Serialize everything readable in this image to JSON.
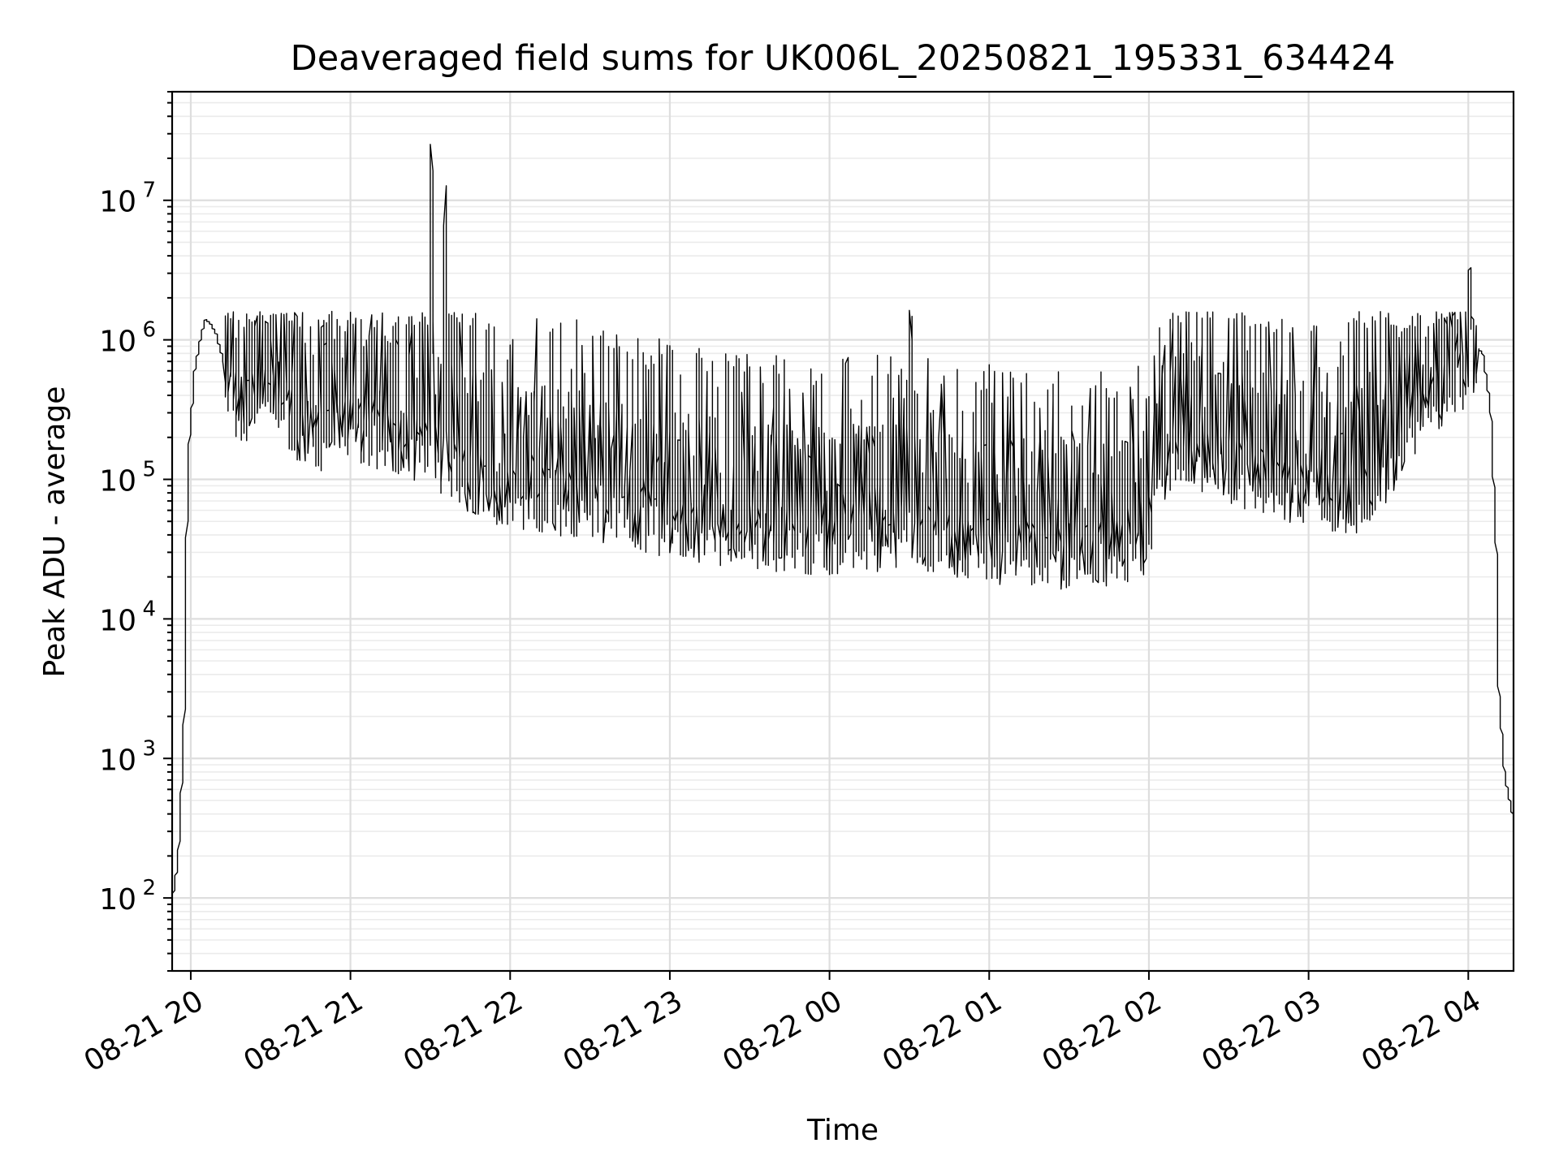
{
  "chart_data": {
    "type": "line",
    "title": "Deaveraged field sums for UK006L_20250821_195331_634424",
    "xlabel": "Time",
    "ylabel": "Peak ADU - average",
    "yscale": "log",
    "grid": true,
    "xlim": [
      "2025-08-21 19:53",
      "2025-08-22 04:17"
    ],
    "ylim": [
      30,
      60000000
    ],
    "x_ticks": [
      {
        "value": "2025-08-21 20:00",
        "label": "08-21 20"
      },
      {
        "value": "2025-08-21 21:00",
        "label": "08-21 21"
      },
      {
        "value": "2025-08-21 22:00",
        "label": "08-21 22"
      },
      {
        "value": "2025-08-21 23:00",
        "label": "08-21 23"
      },
      {
        "value": "2025-08-22 00:00",
        "label": "08-22 00"
      },
      {
        "value": "2025-08-22 01:00",
        "label": "08-22 01"
      },
      {
        "value": "2025-08-22 02:00",
        "label": "08-22 02"
      },
      {
        "value": "2025-08-22 03:00",
        "label": "08-22 03"
      },
      {
        "value": "2025-08-22 04:00",
        "label": "08-22 04"
      }
    ],
    "y_ticks": [
      {
        "value": 100,
        "base": "10",
        "exp": "2"
      },
      {
        "value": 1000,
        "base": "10",
        "exp": "3"
      },
      {
        "value": 10000,
        "base": "10",
        "exp": "4"
      },
      {
        "value": 100000,
        "base": "10",
        "exp": "5"
      },
      {
        "value": 1000000,
        "base": "10",
        "exp": "6"
      },
      {
        "value": 10000000,
        "base": "10",
        "exp": "7"
      }
    ],
    "series": [
      {
        "color": "#000000",
        "x": [
          "2025-08-21 19:53",
          "2025-08-21 19:55",
          "2025-08-21 19:56",
          "2025-08-21 19:57",
          "2025-08-21 19:58",
          "2025-08-21 19:59",
          "2025-08-21 20:00",
          "2025-08-21 20:02",
          "2025-08-21 20:04",
          "2025-08-21 20:06",
          "2025-08-21 20:08",
          "2025-08-21 20:10",
          "2025-08-21 20:12",
          "2025-08-21 20:15",
          "2025-08-21 20:20",
          "2025-08-21 20:30",
          "2025-08-21 20:40",
          "2025-08-21 20:50",
          "2025-08-21 21:00",
          "2025-08-21 21:15",
          "2025-08-21 21:30",
          "2025-08-21 21:31",
          "2025-08-21 21:32",
          "2025-08-21 21:35",
          "2025-08-21 21:36",
          "2025-08-21 21:37",
          "2025-08-21 21:45",
          "2025-08-21 22:00",
          "2025-08-21 22:30",
          "2025-08-21 23:00",
          "2025-08-21 23:30",
          "2025-08-22 00:00",
          "2025-08-22 00:30",
          "2025-08-22 00:31",
          "2025-08-22 00:32",
          "2025-08-22 01:00",
          "2025-08-22 01:30",
          "2025-08-22 01:55",
          "2025-08-22 02:00",
          "2025-08-22 02:05",
          "2025-08-22 02:15",
          "2025-08-22 02:30",
          "2025-08-22 02:45",
          "2025-08-22 03:00",
          "2025-08-22 03:15",
          "2025-08-22 03:30",
          "2025-08-22 03:40",
          "2025-08-22 03:50",
          "2025-08-22 04:00",
          "2025-08-22 04:01",
          "2025-08-22 04:03",
          "2025-08-22 04:06",
          "2025-08-22 04:09",
          "2025-08-22 04:11",
          "2025-08-22 04:12",
          "2025-08-22 04:14",
          "2025-08-22 04:16",
          "2025-08-22 04:17"
        ],
        "y": [
          80,
          150,
          220,
          600,
          2000,
          40000,
          200000,
          600000,
          1000000,
          1400000,
          1300000,
          1100000,
          800000,
          500000,
          400000,
          500000,
          300000,
          250000,
          300000,
          250000,
          200000,
          30000000,
          200000,
          150000,
          13000000,
          150000,
          120000,
          100000,
          80000,
          60000,
          50000,
          45000,
          50000,
          1700000,
          45000,
          40000,
          35000,
          40000,
          45000,
          150000,
          200000,
          150000,
          120000,
          100000,
          80000,
          150000,
          300000,
          500000,
          700000,
          3500000,
          900000,
          800000,
          300000,
          30000,
          3000,
          800,
          500,
          400
        ]
      }
    ]
  }
}
